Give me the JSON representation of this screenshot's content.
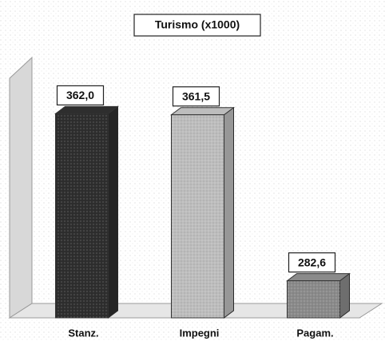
{
  "chart_data": {
    "type": "bar3d",
    "title": "Turismo (x1000)",
    "categories": [
      "Stanz.",
      "Impegni",
      "Pagam."
    ],
    "values": [
      362.0,
      361.5,
      282.6
    ],
    "value_labels": [
      "362,0",
      "361,5",
      "282,6"
    ],
    "colors": [
      "#2e2e2e",
      "#bdbdbd",
      "#8a8a8a"
    ],
    "ylim": [
      265,
      380
    ]
  }
}
